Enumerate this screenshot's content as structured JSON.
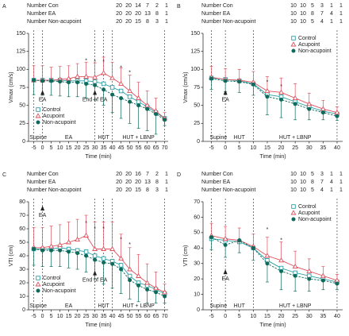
{
  "chart_data": [
    {
      "type": "line",
      "panel": "A",
      "ylabel": "Vmax (cm/s)",
      "xlabel": "Time (min)",
      "x": [
        -5,
        0,
        5,
        10,
        15,
        20,
        25,
        30,
        35,
        40,
        45,
        50,
        55,
        60,
        65,
        70
      ],
      "xlim": [
        -8,
        72
      ],
      "xticks": [
        -5,
        0,
        5,
        10,
        15,
        20,
        25,
        30,
        35,
        40,
        45,
        50,
        55,
        60,
        65,
        70
      ],
      "ylim": [
        0,
        150
      ],
      "yticks": [
        0,
        25,
        50,
        75,
        100,
        125,
        150
      ],
      "vlines": [
        -5,
        0,
        30,
        35,
        40,
        70
      ],
      "phases": [
        {
          "label": "Supine",
          "x": -2.5
        },
        {
          "label": "EA",
          "x": 15
        },
        {
          "label": "HUT",
          "x": 35
        },
        {
          "label": "HUT + LBNP",
          "x": 55
        }
      ],
      "number_rows": [
        {
          "label": "Number Con",
          "values": [
            20,
            20,
            14,
            7,
            2,
            1
          ]
        },
        {
          "label": "Number EA",
          "values": [
            20,
            20,
            20,
            13,
            8,
            1
          ]
        },
        {
          "label": "Number Non-acupoint",
          "values": [
            20,
            20,
            15,
            8,
            3,
            1
          ]
        }
      ],
      "legend": "lower left",
      "series": [
        {
          "name": "Control",
          "color": "#2a9fa6",
          "marker": "square",
          "values": [
            85,
            85,
            85,
            85,
            84,
            84,
            84,
            83,
            80,
            75,
            70,
            62,
            55,
            48,
            40,
            32
          ]
        },
        {
          "name": "Acupoint",
          "color": "#e0505e",
          "marker": "triangle",
          "error_direction": "up",
          "values": [
            85,
            85,
            85,
            86,
            87,
            90,
            90,
            89,
            95,
            88,
            80,
            70,
            60,
            50,
            42,
            32
          ],
          "errors": [
            20,
            20,
            18,
            18,
            18,
            18,
            20,
            20,
            22,
            22,
            22,
            22,
            22,
            20,
            18,
            8
          ]
        },
        {
          "name": "Non-acupoint",
          "color": "#0e6b5c",
          "marker": "circle",
          "error_direction": "down",
          "values": [
            85,
            84,
            84,
            83,
            82,
            82,
            80,
            78,
            72,
            65,
            60,
            55,
            50,
            45,
            38,
            30
          ],
          "errors": [
            20,
            20,
            20,
            20,
            20,
            20,
            20,
            20,
            22,
            25,
            28,
            30,
            32,
            30,
            28,
            8
          ]
        }
      ],
      "annotations": [
        {
          "text": "EA",
          "x": 0,
          "y": 58,
          "arrow": true
        },
        {
          "text": "End of EA",
          "x": 30,
          "y": 58,
          "arrow": true
        },
        {
          "text": "*",
          "x": 25,
          "y": 112
        },
        {
          "text": "*",
          "x": 30,
          "y": 110
        },
        {
          "text": "*",
          "x": 35,
          "y": 110
        },
        {
          "text": "*",
          "x": 45,
          "y": 102
        },
        {
          "text": "*",
          "x": 50,
          "y": 95
        }
      ]
    },
    {
      "type": "line",
      "panel": "B",
      "ylabel": "Vmax (cm/s)",
      "xlabel": "Time (min)",
      "x": [
        -5,
        0,
        5,
        10,
        15,
        20,
        25,
        30,
        35,
        40
      ],
      "xlim": [
        -8,
        42
      ],
      "xticks": [
        -5,
        0,
        5,
        10,
        15,
        20,
        25,
        30,
        35,
        40
      ],
      "ylim": [
        0,
        150
      ],
      "yticks": [
        0,
        25,
        50,
        75,
        100,
        125,
        150
      ],
      "vlines": [
        -5,
        0,
        10,
        40
      ],
      "phases": [
        {
          "label": "Supine",
          "x": -2.5
        },
        {
          "label": "HUT",
          "x": 5
        },
        {
          "label": "HUT + LBNP",
          "x": 25
        }
      ],
      "number_rows": [
        {
          "label": "Number Con",
          "values": [
            10,
            10,
            5,
            3,
            1,
            1
          ]
        },
        {
          "label": "Number EA",
          "values": [
            10,
            10,
            8,
            7,
            4,
            1
          ]
        },
        {
          "label": "Number Non-acupoint",
          "values": [
            10,
            10,
            5,
            4,
            1,
            1
          ]
        }
      ],
      "legend": "upper right",
      "series": [
        {
          "name": "Control",
          "color": "#2a9fa6",
          "marker": "square",
          "values": [
            88,
            86,
            84,
            80,
            65,
            62,
            55,
            48,
            42,
            38
          ]
        },
        {
          "name": "Acupoint",
          "color": "#e0505e",
          "marker": "triangle",
          "error_direction": "up",
          "values": [
            89,
            86,
            85,
            82,
            70,
            68,
            60,
            52,
            45,
            40
          ],
          "errors": [
            15,
            15,
            15,
            15,
            20,
            20,
            20,
            15,
            12,
            8
          ]
        },
        {
          "name": "Non-acupoint",
          "color": "#0e6b5c",
          "marker": "circle",
          "error_direction": "down",
          "values": [
            87,
            84,
            83,
            79,
            62,
            58,
            52,
            45,
            40,
            35
          ],
          "errors": [
            15,
            15,
            15,
            15,
            25,
            25,
            22,
            15,
            10,
            6
          ]
        }
      ],
      "annotations": [
        {
          "text": "EA",
          "x": 0,
          "y": 58,
          "arrow": true
        },
        {
          "text": "*",
          "x": 15,
          "y": 82
        },
        {
          "text": "*",
          "x": 20,
          "y": 76
        }
      ]
    },
    {
      "type": "line",
      "panel": "C",
      "ylabel": "VTI (cm)",
      "xlabel": "Time (min)",
      "x": [
        -5,
        0,
        5,
        10,
        15,
        20,
        25,
        30,
        35,
        40,
        45,
        50,
        55,
        60,
        65,
        70
      ],
      "xlim": [
        -8,
        72
      ],
      "xticks": [
        -5,
        0,
        5,
        10,
        15,
        20,
        25,
        30,
        35,
        40,
        45,
        50,
        55,
        60,
        65,
        70
      ],
      "ylim": [
        0,
        80
      ],
      "yticks": [
        0,
        10,
        20,
        30,
        40,
        50,
        60,
        70,
        80
      ],
      "vlines": [
        -5,
        0,
        30,
        35,
        40,
        70
      ],
      "phases": [
        {
          "label": "Supine",
          "x": -2.5
        },
        {
          "label": "EA",
          "x": 15
        },
        {
          "label": "HUT",
          "x": 35
        },
        {
          "label": "HUT + LBNP",
          "x": 55
        }
      ],
      "number_rows": [
        {
          "label": "Number Con",
          "values": [
            20,
            20,
            16,
            7,
            2,
            1
          ]
        },
        {
          "label": "Number EA",
          "values": [
            20,
            20,
            20,
            13,
            8,
            1
          ]
        },
        {
          "label": "Number Non-acupoint",
          "values": [
            20,
            20,
            15,
            8,
            3,
            1
          ]
        }
      ],
      "legend": "lower left",
      "series": [
        {
          "name": "Control",
          "color": "#2a9fa6",
          "marker": "square",
          "values": [
            45,
            45,
            45,
            46,
            45,
            44,
            43,
            40,
            38,
            36,
            33,
            25,
            20,
            18,
            15,
            12
          ]
        },
        {
          "name": "Acupoint",
          "color": "#e0505e",
          "marker": "triangle",
          "error_direction": "up",
          "values": [
            46,
            46,
            47,
            48,
            50,
            52,
            55,
            45,
            45,
            45,
            38,
            30,
            25,
            20,
            16,
            13
          ],
          "errors": [
            15,
            15,
            15,
            15,
            15,
            15,
            15,
            20,
            20,
            20,
            18,
            16,
            16,
            14,
            12,
            6
          ]
        },
        {
          "name": "Non-acupoint",
          "color": "#0e6b5c",
          "marker": "circle",
          "error_direction": "down",
          "values": [
            45,
            44,
            44,
            44,
            43,
            42,
            40,
            37,
            35,
            34,
            30,
            22,
            18,
            15,
            13,
            10
          ],
          "errors": [
            12,
            12,
            12,
            12,
            12,
            12,
            12,
            14,
            16,
            18,
            18,
            14,
            12,
            10,
            8,
            5
          ]
        }
      ],
      "annotations": [
        {
          "text": "EA",
          "x": 0,
          "y": 70,
          "arrow": true
        },
        {
          "text": "End of EA",
          "x": 30,
          "y": 22,
          "arrow": true
        },
        {
          "text": "*",
          "x": 25,
          "y": 64
        },
        {
          "text": "*",
          "x": 30,
          "y": 60
        },
        {
          "text": "*",
          "x": 35,
          "y": 60
        },
        {
          "text": "*",
          "x": 45,
          "y": 52
        },
        {
          "text": "*",
          "x": 50,
          "y": 48
        }
      ]
    },
    {
      "type": "line",
      "panel": "D",
      "ylabel": "VTI (cm)",
      "xlabel": "Time (min)",
      "x": [
        -5,
        0,
        5,
        10,
        15,
        20,
        25,
        30,
        35,
        40
      ],
      "xlim": [
        -8,
        42
      ],
      "xticks": [
        -5,
        0,
        5,
        10,
        15,
        20,
        25,
        30,
        35,
        40
      ],
      "ylim": [
        0,
        70
      ],
      "yticks": [
        0,
        10,
        20,
        30,
        40,
        50,
        60,
        70
      ],
      "vlines": [
        -5,
        0,
        10,
        40
      ],
      "phases": [
        {
          "label": "Supine",
          "x": -2.5
        },
        {
          "label": "HUT",
          "x": 5
        },
        {
          "label": "HUT + LBNP",
          "x": 25
        }
      ],
      "number_rows": [
        {
          "label": "Number Con",
          "values": [
            10,
            10,
            5,
            3,
            1,
            1
          ]
        },
        {
          "label": "Number EA",
          "values": [
            10,
            10,
            8,
            7,
            4,
            1
          ]
        },
        {
          "label": "Number Non-acupoint",
          "values": [
            10,
            10,
            5,
            4,
            1,
            1
          ]
        }
      ],
      "legend": "upper right",
      "series": [
        {
          "name": "Control",
          "color": "#2a9fa6",
          "marker": "square",
          "values": [
            46,
            45,
            44,
            40,
            32,
            27,
            24,
            22,
            20,
            18
          ]
        },
        {
          "name": "Acupoint",
          "color": "#e0505e",
          "marker": "triangle",
          "error_direction": "up",
          "values": [
            48,
            46,
            45,
            41,
            35,
            32,
            28,
            25,
            22,
            19
          ],
          "errors": [
            8,
            8,
            8,
            8,
            12,
            12,
            10,
            8,
            6,
            4
          ]
        },
        {
          "name": "Non-acupoint",
          "color": "#0e6b5c",
          "marker": "circle",
          "error_direction": "down",
          "values": [
            47,
            42,
            45,
            40,
            30,
            25,
            22,
            20,
            19,
            17
          ],
          "errors": [
            8,
            8,
            8,
            8,
            12,
            12,
            10,
            8,
            6,
            4
          ]
        }
      ],
      "annotations": [
        {
          "text": "EA",
          "x": 0,
          "y": 20,
          "arrow": true
        },
        {
          "text": "*",
          "x": 15,
          "y": 52
        },
        {
          "text": "*",
          "x": 20,
          "y": 45
        }
      ]
    }
  ]
}
